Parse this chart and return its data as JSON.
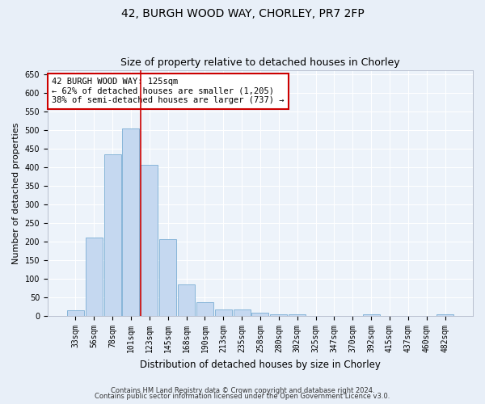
{
  "title1": "42, BURGH WOOD WAY, CHORLEY, PR7 2FP",
  "title2": "Size of property relative to detached houses in Chorley",
  "xlabel": "Distribution of detached houses by size in Chorley",
  "ylabel": "Number of detached properties",
  "categories": [
    "33sqm",
    "56sqm",
    "78sqm",
    "101sqm",
    "123sqm",
    "145sqm",
    "168sqm",
    "190sqm",
    "213sqm",
    "235sqm",
    "258sqm",
    "280sqm",
    "302sqm",
    "325sqm",
    "347sqm",
    "370sqm",
    "392sqm",
    "415sqm",
    "437sqm",
    "460sqm",
    "482sqm"
  ],
  "values": [
    15,
    212,
    435,
    503,
    407,
    207,
    85,
    38,
    18,
    18,
    10,
    5,
    4,
    1,
    1,
    1,
    5,
    1,
    1,
    1,
    5
  ],
  "bar_color": "#c5d8f0",
  "bar_edge_color": "#7aadd4",
  "vline_color": "#cc0000",
  "annotation_text": "42 BURGH WOOD WAY: 125sqm\n← 62% of detached houses are smaller (1,205)\n38% of semi-detached houses are larger (737) →",
  "annotation_box_color": "#ffffff",
  "annotation_box_edge": "#cc0000",
  "ylim": [
    0,
    660
  ],
  "yticks": [
    0,
    50,
    100,
    150,
    200,
    250,
    300,
    350,
    400,
    450,
    500,
    550,
    600,
    650
  ],
  "footer1": "Contains HM Land Registry data © Crown copyright and database right 2024.",
  "footer2": "Contains public sector information licensed under the Open Government Licence v3.0.",
  "bg_color": "#e8eff8",
  "plot_bg_color": "#edf3fa",
  "grid_color": "#ffffff",
  "title1_fontsize": 10,
  "title2_fontsize": 9,
  "tick_fontsize": 7,
  "ylabel_fontsize": 8,
  "xlabel_fontsize": 8.5,
  "footer_fontsize": 6,
  "annot_fontsize": 7.5
}
